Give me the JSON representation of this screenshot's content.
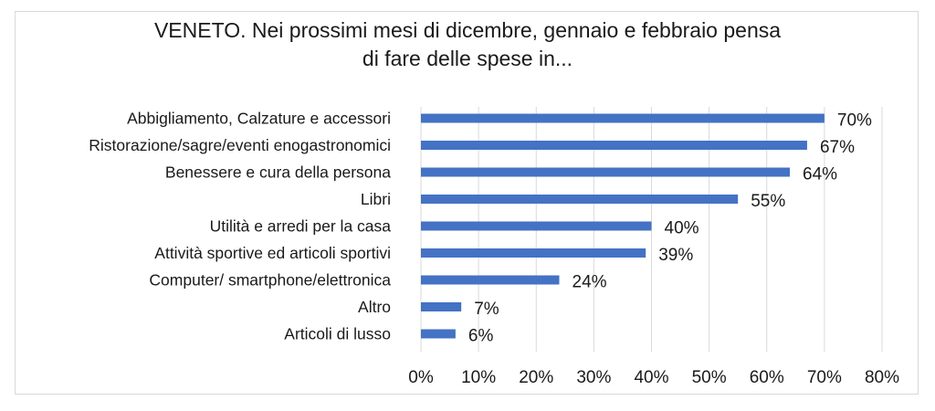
{
  "chart_data": {
    "type": "bar",
    "orientation": "horizontal",
    "title": [
      "VENETO. Nei prossimi mesi di dicembre, gennaio e febbraio pensa",
      "di fare delle spese in..."
    ],
    "categories": [
      "Abbigliamento, Calzature e accessori",
      "Ristorazione/sagre/eventi enogastronomici",
      "Benessere e cura della persona",
      "Libri",
      "Utilità e arredi per la casa",
      "Attività sportive ed articoli sportivi",
      "Computer/ smartphone/elettronica",
      "Altro",
      "Articoli di lusso"
    ],
    "values": [
      70,
      67,
      64,
      55,
      40,
      39,
      24,
      7,
      6
    ],
    "data_labels": [
      "70%",
      "67%",
      "64%",
      "55%",
      "40%",
      "39%",
      "24%",
      "7%",
      "6%"
    ],
    "xlim": [
      0,
      80
    ],
    "x_ticks": [
      "0%",
      "10%",
      "20%",
      "30%",
      "40%",
      "50%",
      "60%",
      "70%",
      "80%"
    ],
    "grid": "vertical",
    "legend": "none",
    "colors": {
      "bar": "#4472c4",
      "grid": "#d9d9d9",
      "text": "#1a1a1a"
    }
  }
}
